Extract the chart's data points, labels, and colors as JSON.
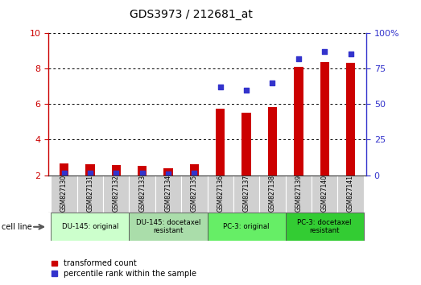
{
  "title": "GDS3973 / 212681_at",
  "samples": [
    "GSM827130",
    "GSM827131",
    "GSM827132",
    "GSM827133",
    "GSM827134",
    "GSM827135",
    "GSM827136",
    "GSM827137",
    "GSM827138",
    "GSM827139",
    "GSM827140",
    "GSM827141"
  ],
  "transformed_count": [
    2.65,
    2.62,
    2.58,
    2.52,
    2.38,
    2.62,
    5.72,
    5.52,
    5.82,
    8.08,
    8.38,
    8.32
  ],
  "percentile_rank": [
    1.5,
    1.8,
    1.8,
    1.5,
    1.2,
    1.8,
    62,
    60,
    65,
    82,
    87,
    85
  ],
  "bar_color": "#cc0000",
  "dot_color": "#3333cc",
  "ylim_left": [
    2,
    10
  ],
  "ylim_right": [
    0,
    100
  ],
  "yticks_left": [
    2,
    4,
    6,
    8,
    10
  ],
  "yticks_right": [
    0,
    25,
    50,
    75,
    100
  ],
  "tick_label_color_left": "#cc0000",
  "tick_label_color_right": "#3333cc",
  "groups": [
    {
      "label": "DU-145: original",
      "start": 0,
      "end": 3,
      "color": "#ccffcc"
    },
    {
      "label": "DU-145: docetaxel\nresistant",
      "start": 3,
      "end": 6,
      "color": "#aaddaa"
    },
    {
      "label": "PC-3: original",
      "start": 6,
      "end": 9,
      "color": "#66ee66"
    },
    {
      "label": "PC-3: docetaxel\nresistant",
      "start": 9,
      "end": 12,
      "color": "#33cc33"
    }
  ],
  "cell_line_label": "cell line",
  "legend_bar_label": "transformed count",
  "legend_dot_label": "percentile rank within the sample",
  "sample_box_color": "#d0d0d0",
  "sample_box_edge_color": "#ffffff"
}
